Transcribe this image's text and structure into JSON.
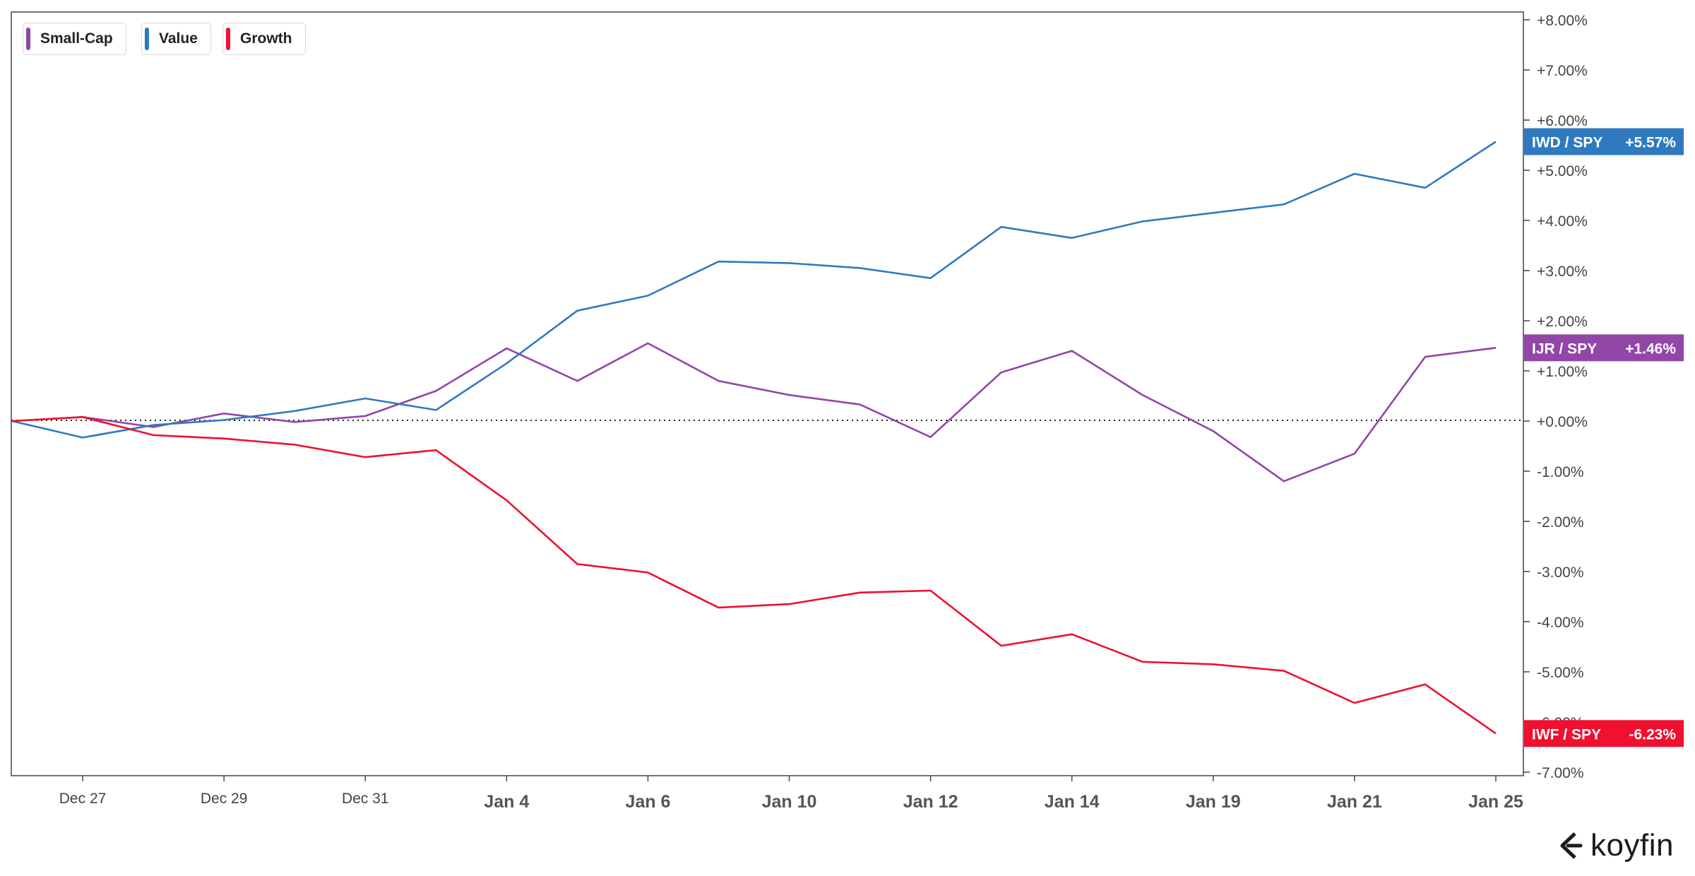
{
  "chart_data": {
    "type": "line",
    "x": [
      "Dec 26",
      "Dec 27",
      "Dec 28",
      "Dec 29",
      "Dec 30",
      "Dec 31",
      "Jan 1",
      "Jan 4",
      "Jan 5",
      "Jan 6",
      "Jan 7",
      "Jan 10",
      "Jan 11",
      "Jan 12",
      "Jan 13",
      "Jan 14",
      "Jan 18",
      "Jan 19",
      "Jan 20",
      "Jan 21",
      "Jan 24",
      "Jan 25"
    ],
    "x_tick_labels": [
      {
        "label": "Dec 27",
        "bold": false
      },
      {
        "label": "Dec 29",
        "bold": false
      },
      {
        "label": "Dec 31",
        "bold": false
      },
      {
        "label": "Jan 4",
        "bold": true
      },
      {
        "label": "Jan 6",
        "bold": true
      },
      {
        "label": "Jan 10",
        "bold": true
      },
      {
        "label": "Jan 12",
        "bold": true
      },
      {
        "label": "Jan 14",
        "bold": true
      },
      {
        "label": "Jan 19",
        "bold": true
      },
      {
        "label": "Jan 21",
        "bold": true
      },
      {
        "label": "Jan 25",
        "bold": true
      }
    ],
    "ylim": [
      -7,
      8
    ],
    "y_ticks": [
      "+8.00%",
      "+7.00%",
      "+6.00%",
      "+5.00%",
      "+4.00%",
      "+3.00%",
      "+2.00%",
      "+1.00%",
      "+0.00%",
      "-1.00%",
      "-2.00%",
      "-3.00%",
      "-4.00%",
      "-5.00%",
      "-6.00%",
      "-7.00%"
    ],
    "zero_line": "dotted",
    "grid": false,
    "legend_position": "top-left",
    "series": [
      {
        "name": "Small-Cap",
        "ticker": "IJR / SPY",
        "last_label": "+1.46%",
        "color": "#9146a8",
        "values": [
          0.0,
          0.08,
          -0.12,
          0.15,
          -0.02,
          0.1,
          0.6,
          1.45,
          0.8,
          1.55,
          0.8,
          0.52,
          0.33,
          -0.32,
          0.97,
          1.4,
          0.52,
          -0.2,
          -1.2,
          -0.65,
          1.28,
          1.46
        ]
      },
      {
        "name": "Value",
        "ticker": "IWD / SPY",
        "last_label": "+5.57%",
        "color": "#2f7abf",
        "values": [
          0.0,
          -0.33,
          -0.08,
          0.02,
          0.2,
          0.45,
          0.22,
          1.15,
          2.2,
          2.5,
          3.18,
          3.15,
          3.05,
          2.85,
          3.87,
          3.65,
          3.98,
          4.15,
          4.32,
          4.93,
          4.65,
          5.57
        ]
      },
      {
        "name": "Growth",
        "ticker": "IWF / SPY",
        "last_label": "-6.23%",
        "color": "#f0102f",
        "values": [
          0.0,
          0.08,
          -0.28,
          -0.35,
          -0.47,
          -0.72,
          -0.58,
          -1.58,
          -2.85,
          -3.02,
          -3.72,
          -3.65,
          -3.42,
          -3.38,
          -4.48,
          -4.25,
          -4.8,
          -4.85,
          -4.98,
          -5.62,
          -5.25,
          -6.23
        ]
      }
    ]
  },
  "branding": {
    "logo_text": "koyfin",
    "logo_icon": "koyfin-logo-icon"
  }
}
